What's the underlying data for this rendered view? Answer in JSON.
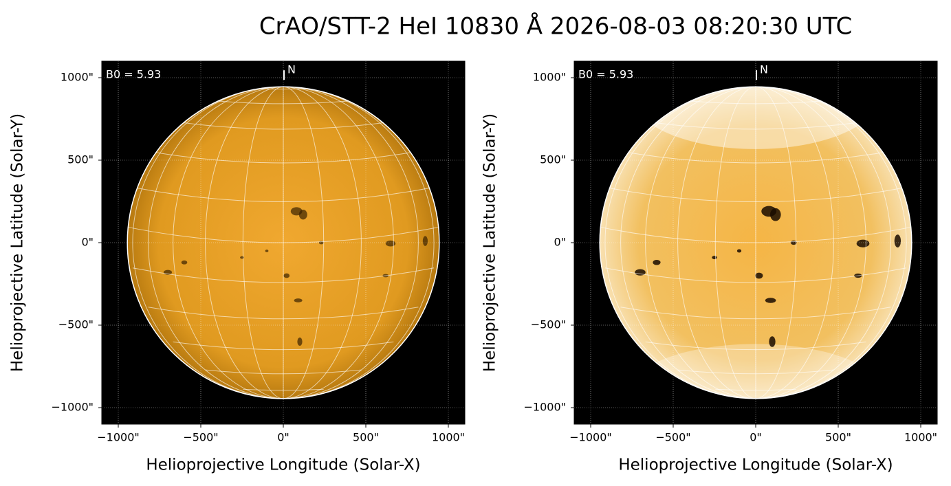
{
  "title": "CrAO/STT-2 HeI 10830 Å 2026-08-03 08:20:30 UTC",
  "panels": [
    {
      "annotation": "B0 = 5.93",
      "north_label": "N",
      "xlabel": "Helioprojective Longitude (Solar-X)",
      "ylabel": "Helioprojective Latitude (Solar-Y)",
      "xlim": [
        -1100,
        1100
      ],
      "ylim": [
        -1100,
        1100
      ],
      "xticks": [
        {
          "value": -1000,
          "label": "−1000\""
        },
        {
          "value": -500,
          "label": "−500\""
        },
        {
          "value": 0,
          "label": "0\""
        },
        {
          "value": 500,
          "label": "500\""
        },
        {
          "value": 1000,
          "label": "1000\""
        }
      ],
      "yticks": [
        {
          "value": -1000,
          "label": "−1000\""
        },
        {
          "value": -500,
          "label": "−500\""
        },
        {
          "value": 0,
          "label": "0\""
        },
        {
          "value": 500,
          "label": "500\""
        },
        {
          "value": 1000,
          "label": "1000\""
        }
      ]
    },
    {
      "annotation": "B0 = 5.93",
      "north_label": "N",
      "xlabel": "Helioprojective Longitude (Solar-X)",
      "ylabel": "Helioprojective Latitude (Solar-Y)",
      "xlim": [
        -1100,
        1100
      ],
      "ylim": [
        -1100,
        1100
      ],
      "xticks": [
        {
          "value": -1000,
          "label": "−1000\""
        },
        {
          "value": -500,
          "label": "−500\""
        },
        {
          "value": 0,
          "label": "0\""
        },
        {
          "value": 500,
          "label": "500\""
        },
        {
          "value": 1000,
          "label": "1000\""
        }
      ],
      "yticks": [
        {
          "value": -1000,
          "label": "−1000\""
        },
        {
          "value": -500,
          "label": "−500\""
        },
        {
          "value": 0,
          "label": "0\""
        },
        {
          "value": 500,
          "label": "500\""
        },
        {
          "value": 1000,
          "label": "1000\""
        }
      ]
    }
  ]
}
